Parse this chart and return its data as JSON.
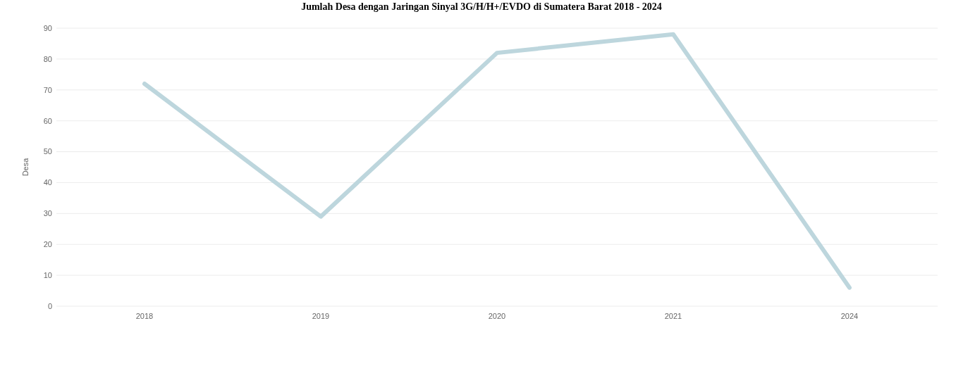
{
  "chart_data": {
    "type": "line",
    "title": "Jumlah Desa dengan Jaringan Sinyal 3G/H/H+/EVDO di Sumatera Barat 2018 - 2024",
    "ylabel": "Desa",
    "categories": [
      "2018",
      "2019",
      "2020",
      "2021",
      "2024"
    ],
    "series": [
      {
        "color": "#bdd6dd",
        "values": [
          72,
          29,
          82,
          88,
          6
        ]
      }
    ],
    "ylim": [
      0,
      90
    ],
    "yticks": [
      0,
      10,
      20,
      30,
      40,
      50,
      60,
      70,
      80,
      90
    ],
    "grid": "y",
    "marker": "none",
    "line_style": "solid"
  }
}
